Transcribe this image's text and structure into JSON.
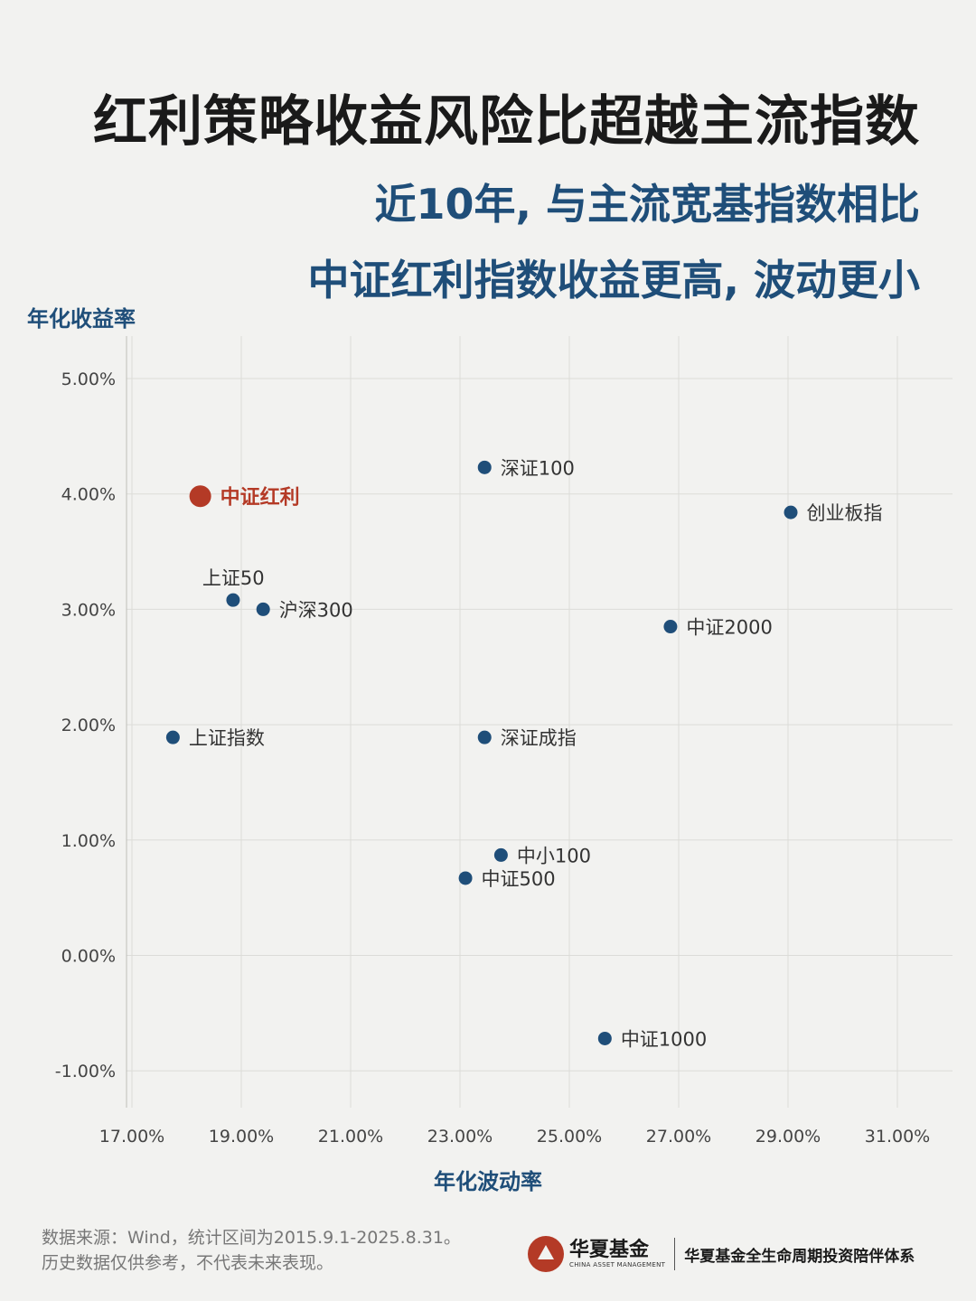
{
  "title": "红利策略收益风险比超越主流指数",
  "subtitle_line1": "近10年, 与主流宽基指数相比",
  "subtitle_line2": "中证红利指数收益更高, 波动更小",
  "footer": {
    "source": "数据来源：Wind，统计区间为2015.9.1-2025.8.31。",
    "disclaimer": "历史数据仅供参考，不代表未来表现。",
    "brand_name": "华夏基金",
    "brand_en": "CHINA ASSET MANAGEMENT",
    "brand_tagline": "华夏基金全生命周期投资陪伴体系"
  },
  "chart_data": {
    "type": "scatter",
    "xlabel": "年化波动率",
    "ylabel": "年化收益率",
    "xlim": [
      17.0,
      31.0
    ],
    "ylim": [
      -1.0,
      5.0
    ],
    "x_ticks": [
      17,
      19,
      21,
      23,
      25,
      27,
      29,
      31
    ],
    "y_ticks": [
      5,
      4,
      3,
      2,
      1,
      0,
      -1
    ],
    "x_tick_labels": [
      "17.00%",
      "19.00%",
      "21.00%",
      "23.00%",
      "25.00%",
      "27.00%",
      "29.00%",
      "31.00%"
    ],
    "y_tick_labels": [
      "5.00%",
      "4.00%",
      "3.00%",
      "2.00%",
      "1.00%",
      "0.00%",
      "-1.00%"
    ],
    "grid": true,
    "colors": {
      "highlight": "#b43a26",
      "default": "#1f4e79"
    },
    "points": [
      {
        "label": "中证红利",
        "x": 18.25,
        "y": 3.98,
        "highlight": true,
        "label_pos": "right"
      },
      {
        "label": "深证100",
        "x": 23.45,
        "y": 4.23,
        "label_pos": "right"
      },
      {
        "label": "创业板指",
        "x": 29.05,
        "y": 3.84,
        "label_pos": "right"
      },
      {
        "label": "上证50",
        "x": 18.85,
        "y": 3.08,
        "label_pos": "top"
      },
      {
        "label": "沪深300",
        "x": 19.4,
        "y": 3.0,
        "label_pos": "right"
      },
      {
        "label": "中证2000",
        "x": 26.85,
        "y": 2.85,
        "label_pos": "right"
      },
      {
        "label": "上证指数",
        "x": 17.75,
        "y": 1.89,
        "label_pos": "right"
      },
      {
        "label": "深证成指",
        "x": 23.45,
        "y": 1.89,
        "label_pos": "right"
      },
      {
        "label": "中小100",
        "x": 23.75,
        "y": 0.87,
        "label_pos": "right"
      },
      {
        "label": "中证500",
        "x": 23.1,
        "y": 0.67,
        "label_pos": "right"
      },
      {
        "label": "中证1000",
        "x": 25.65,
        "y": -0.72,
        "label_pos": "right"
      }
    ]
  }
}
